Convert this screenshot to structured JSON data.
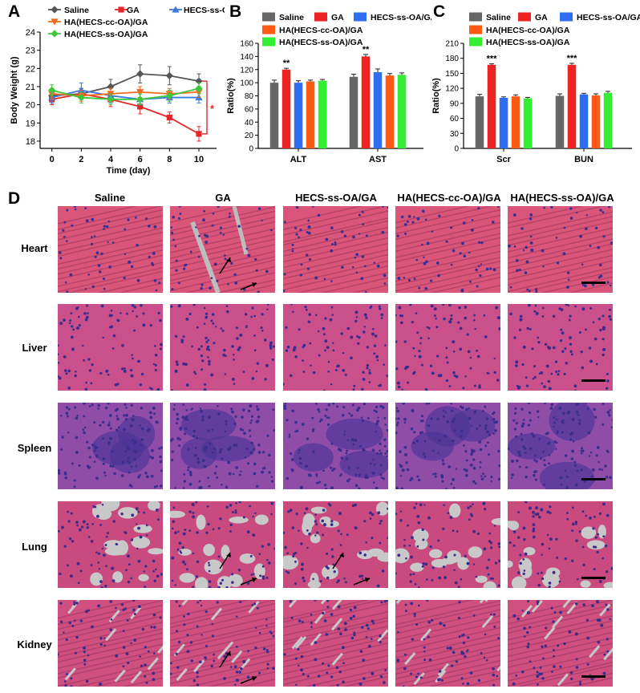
{
  "panels": {
    "a": "A",
    "b": "B",
    "c": "C",
    "d": "D"
  },
  "chart_data": [
    {
      "panel": "A",
      "type": "line",
      "ylabel": "Body Weight (g)",
      "xlabel": "Time (day)",
      "x": [
        0,
        2,
        4,
        6,
        8,
        10
      ],
      "xticks": [
        "0",
        "2",
        "4",
        "6",
        "8",
        "10"
      ],
      "yticks": [
        "18",
        "19",
        "20",
        "21",
        "22",
        "23",
        "24"
      ],
      "xlim": [
        -0.8,
        11.2
      ],
      "ylim": [
        17.6,
        24
      ],
      "legend": [
        "Saline",
        "GA",
        "HECS-ss-OA/GA",
        "HA(HECS-cc-OA)/GA",
        "HA(HECS-ss-OA)/GA"
      ],
      "series": [
        {
          "name": "Saline",
          "color": "#555555",
          "marker": "diamond",
          "values": [
            20.5,
            20.6,
            21.0,
            21.7,
            21.6,
            21.3
          ],
          "err": [
            0.3,
            0.3,
            0.4,
            0.5,
            0.5,
            0.4
          ]
        },
        {
          "name": "GA",
          "color": "#e8262a",
          "marker": "square",
          "values": [
            20.3,
            20.6,
            20.3,
            19.9,
            19.3,
            18.4
          ],
          "err": [
            0.3,
            0.3,
            0.4,
            0.4,
            0.3,
            0.4
          ]
        },
        {
          "name": "HECS-ss-OA/GA",
          "color": "#3b79e0",
          "marker": "triangle",
          "values": [
            20.4,
            20.8,
            20.5,
            20.3,
            20.4,
            20.4
          ],
          "err": [
            0.3,
            0.4,
            0.4,
            0.3,
            0.3,
            0.3
          ]
        },
        {
          "name": "HA(HECS-cc-OA)/GA",
          "color": "#f26a1b",
          "marker": "triangle-down",
          "values": [
            20.6,
            20.5,
            20.6,
            20.7,
            20.6,
            20.7
          ],
          "err": [
            0.3,
            0.3,
            0.3,
            0.3,
            0.3,
            0.3
          ]
        },
        {
          "name": "HA(HECS-ss-OA)/GA",
          "color": "#3cc83c",
          "marker": "diamond",
          "values": [
            20.8,
            20.4,
            20.3,
            20.3,
            20.5,
            20.9
          ],
          "err": [
            0.3,
            0.3,
            0.3,
            0.3,
            0.3,
            0.3
          ]
        }
      ],
      "annotation": "*"
    },
    {
      "panel": "B",
      "type": "bar",
      "ylabel": "Ratio(%)",
      "categories": [
        "ALT",
        "AST"
      ],
      "yticks": [
        "0",
        "20",
        "40",
        "60",
        "80",
        "100",
        "120",
        "140",
        "160"
      ],
      "ylim": [
        0,
        160
      ],
      "legend": [
        "Saline",
        "GA",
        "HECS-ss-OA/GA",
        "HA(HECS-cc-OA)/GA",
        "HA(HECS-ss-OA)/GA"
      ],
      "series": [
        {
          "name": "Saline",
          "color": "#666666",
          "values": [
            100,
            109
          ],
          "err": [
            4,
            4
          ]
        },
        {
          "name": "GA",
          "color": "#ee2222",
          "values": [
            120,
            140
          ],
          "err": [
            2,
            3
          ]
        },
        {
          "name": "HECS-ss-OA/GA",
          "color": "#2f6ef0",
          "values": [
            100,
            116
          ],
          "err": [
            3,
            5
          ]
        },
        {
          "name": "HA(HECS-cc-OA)/GA",
          "color": "#ff5a14",
          "values": [
            102,
            111
          ],
          "err": [
            2,
            3
          ]
        },
        {
          "name": "HA(HECS-ss-OA)/GA",
          "color": "#33ee33",
          "values": [
            103,
            112
          ],
          "err": [
            2,
            3
          ]
        }
      ],
      "significance": [
        "**",
        "**"
      ]
    },
    {
      "panel": "C",
      "type": "bar",
      "ylabel": "Ratio(%)",
      "categories": [
        "Scr",
        "BUN"
      ],
      "yticks": [
        "0",
        "30",
        "60",
        "90",
        "120",
        "150",
        "180",
        "210"
      ],
      "ylim": [
        0,
        210
      ],
      "legend": [
        "Saline",
        "GA",
        "HECS-ss-OA/GA",
        "HA(HECS-cc-OA)/GA",
        "HA(HECS-ss-OA)/GA"
      ],
      "series": [
        {
          "name": "Saline",
          "color": "#666666",
          "values": [
            104,
            105
          ],
          "err": [
            4,
            4
          ]
        },
        {
          "name": "GA",
          "color": "#ee2222",
          "values": [
            167,
            167
          ],
          "err": [
            2,
            3
          ]
        },
        {
          "name": "HECS-ss-OA/GA",
          "color": "#2f6ef0",
          "values": [
            101,
            108
          ],
          "err": [
            2,
            2
          ]
        },
        {
          "name": "HA(HECS-cc-OA)/GA",
          "color": "#ff5a14",
          "values": [
            104,
            106
          ],
          "err": [
            3,
            3
          ]
        },
        {
          "name": "HA(HECS-ss-OA)/GA",
          "color": "#33ee33",
          "values": [
            100,
            111
          ],
          "err": [
            2,
            3
          ]
        }
      ],
      "significance": [
        "***",
        "***"
      ]
    }
  ],
  "histology": {
    "columns": [
      "Saline",
      "GA",
      "HECS-ss-OA/GA",
      "HA(HECS-cc-OA)/GA",
      "HA(HECS-ss-OA)/GA"
    ],
    "rows": [
      "Heart",
      "Liver",
      "Spleen",
      "Lung",
      "Kidney"
    ]
  }
}
